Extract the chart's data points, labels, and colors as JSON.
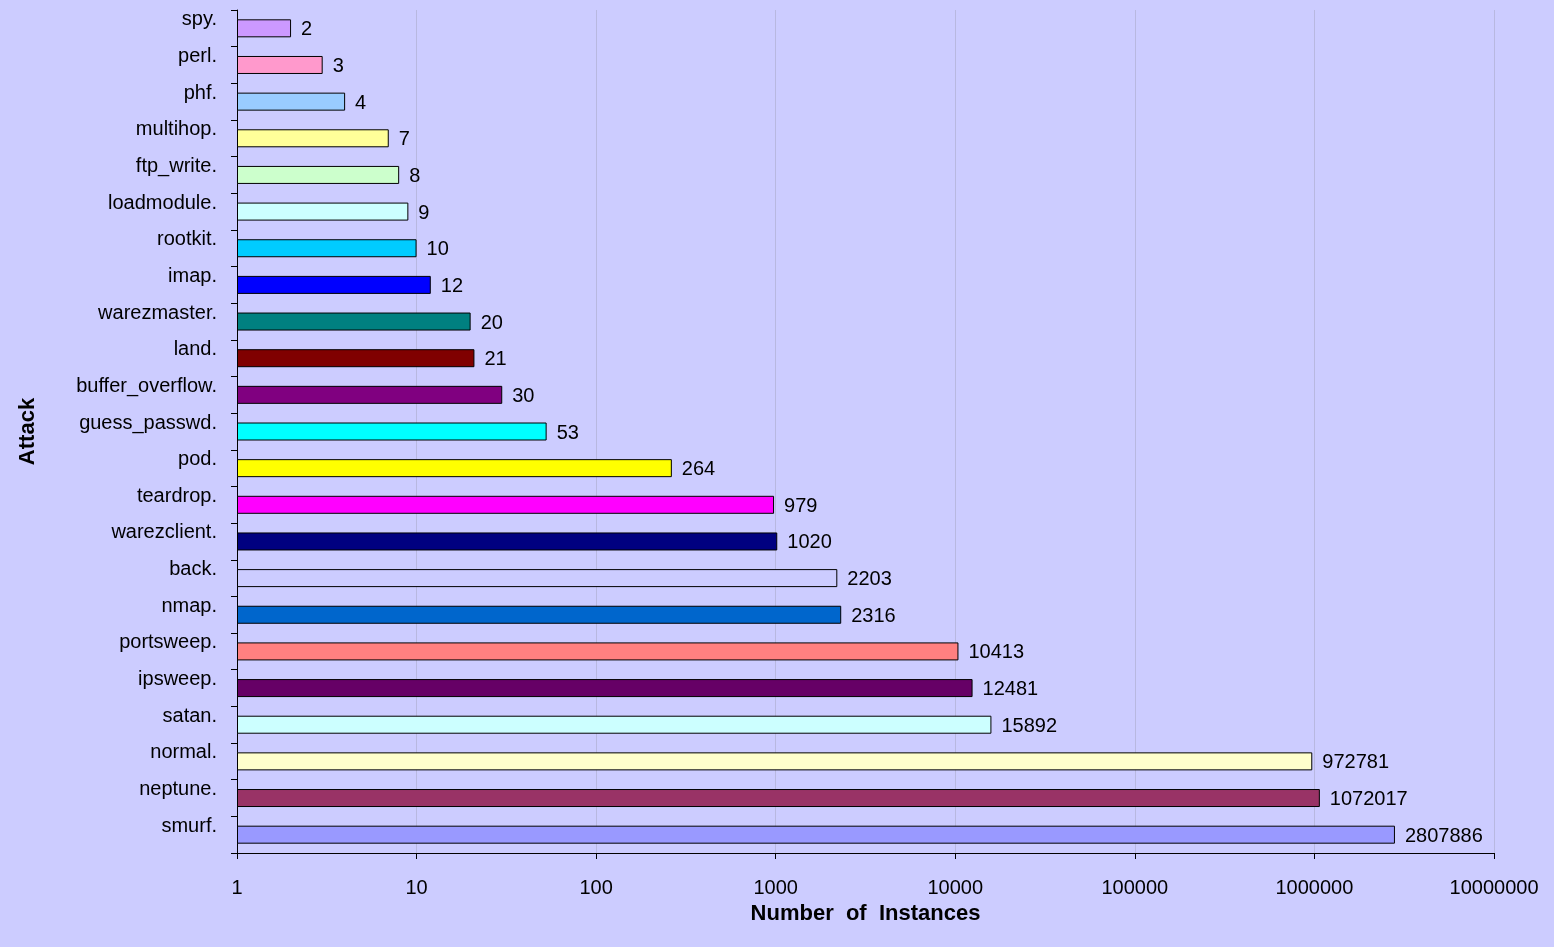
{
  "chart_data": {
    "type": "bar",
    "orientation": "horizontal",
    "xlabel": "Number  of  Instances",
    "ylabel": "Attack",
    "categories": [
      "spy.",
      "perl.",
      "phf.",
      "multihop.",
      "ftp_write.",
      "loadmodule.",
      "rootkit.",
      "imap.",
      "warezmaster.",
      "land.",
      "buffer_overflow.",
      "guess_passwd.",
      "pod.",
      "teardrop.",
      "warezclient.",
      "back.",
      "nmap.",
      "portsweep.",
      "ipsweep.",
      "satan.",
      "normal.",
      "neptune.",
      "smurf."
    ],
    "values": [
      2,
      3,
      4,
      7,
      8,
      9,
      10,
      12,
      20,
      21,
      30,
      53,
      264,
      979,
      1020,
      2203,
      2316,
      10413,
      12481,
      15892,
      972781,
      1072017,
      2807886
    ],
    "colors": [
      "#cc99ff",
      "#ff99cc",
      "#99ccff",
      "#ffff99",
      "#ccffcc",
      "#ccffff",
      "#00ccff",
      "#0000ff",
      "#008080",
      "#800000",
      "#800080",
      "#00ffff",
      "#ffff00",
      "#ff00ff",
      "#000080",
      "#ccccff",
      "#0066cc",
      "#ff8080",
      "#660066",
      "#ccffff",
      "#ffffcc",
      "#993366",
      "#9999ff"
    ],
    "xlim": [
      1,
      10000000
    ],
    "xticks": [
      1,
      10,
      100,
      1000,
      10000,
      100000,
      1000000,
      10000000
    ],
    "log": "x",
    "grid": "x",
    "data_labels": true
  }
}
